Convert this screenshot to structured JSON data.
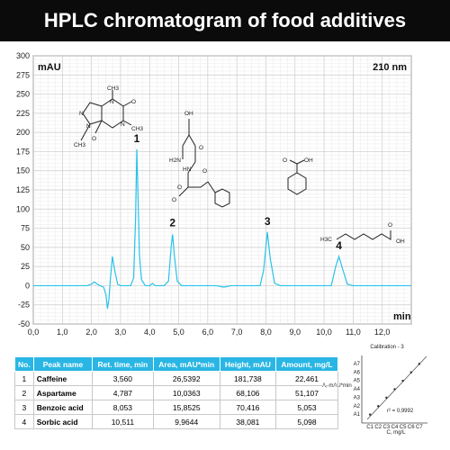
{
  "title": "HPLC chromatogram of food additives",
  "colors": {
    "trace": "#29c2ea",
    "header": "#29b6e4",
    "title_bg": "#0b0b0b"
  },
  "chart_data": [
    {
      "type": "line",
      "y_unit_label": "mAU",
      "x_unit_label": "min",
      "wavelength": "210 nm",
      "xlim": [
        0,
        13
      ],
      "ylim": [
        -50,
        300
      ],
      "x_ticks": [
        "0,0",
        "1,0",
        "2,0",
        "3,0",
        "4,0",
        "5,0",
        "6,0",
        "7,0",
        "8,0",
        "9,0",
        "10,0",
        "11,0",
        "12,0"
      ],
      "y_ticks": [
        "300",
        "275",
        "250",
        "225",
        "200",
        "175",
        "150",
        "125",
        "100",
        "75",
        "50",
        "25",
        "0",
        "-25",
        "-50"
      ],
      "grid": true,
      "series": [
        {
          "points": [
            [
              0,
              0
            ],
            [
              1.85,
              0
            ],
            [
              2.0,
              2
            ],
            [
              2.1,
              5
            ],
            [
              2.2,
              2
            ],
            [
              2.3,
              0
            ],
            [
              2.42,
              -2
            ],
            [
              2.5,
              -12
            ],
            [
              2.55,
              -30
            ],
            [
              2.6,
              -18
            ],
            [
              2.65,
              8
            ],
            [
              2.72,
              38
            ],
            [
              2.8,
              20
            ],
            [
              2.9,
              2
            ],
            [
              3.0,
              0
            ],
            [
              3.2,
              0
            ],
            [
              3.35,
              0
            ],
            [
              3.45,
              10
            ],
            [
              3.52,
              90
            ],
            [
              3.56,
              178
            ],
            [
              3.6,
              120
            ],
            [
              3.65,
              40
            ],
            [
              3.72,
              8
            ],
            [
              3.85,
              0
            ],
            [
              4.0,
              0
            ],
            [
              4.1,
              3
            ],
            [
              4.2,
              0
            ],
            [
              4.5,
              0
            ],
            [
              4.65,
              6
            ],
            [
              4.74,
              50
            ],
            [
              4.79,
              67
            ],
            [
              4.85,
              40
            ],
            [
              4.95,
              6
            ],
            [
              5.1,
              0
            ],
            [
              6.3,
              0
            ],
            [
              6.55,
              -2
            ],
            [
              6.8,
              0
            ],
            [
              7.8,
              0
            ],
            [
              7.92,
              20
            ],
            [
              8.05,
              70
            ],
            [
              8.15,
              35
            ],
            [
              8.3,
              3
            ],
            [
              8.5,
              0
            ],
            [
              10.25,
              0
            ],
            [
              10.4,
              25
            ],
            [
              10.51,
              38
            ],
            [
              10.62,
              24
            ],
            [
              10.8,
              2
            ],
            [
              11.0,
              0
            ],
            [
              13,
              0
            ]
          ]
        }
      ],
      "peak_labels": [
        {
          "text": "1",
          "x": 3.56,
          "y": 178
        },
        {
          "text": "2",
          "x": 4.787,
          "y": 68
        },
        {
          "text": "3",
          "x": 8.053,
          "y": 70
        },
        {
          "text": "4",
          "x": 10.511,
          "y": 38
        }
      ]
    },
    {
      "type": "scatter",
      "title": "Calibration - 3",
      "ylabel": "A, mAU*min",
      "xlabel": "C, mg/L",
      "x_ticks": [
        "C1",
        "C2",
        "C3",
        "C4",
        "C5",
        "C6",
        "C7"
      ],
      "y_ticks": [
        "A1",
        "A2",
        "A3",
        "A4",
        "A5",
        "A6",
        "A7"
      ],
      "r_squared": "r² = 0,9992",
      "points": [
        [
          1,
          1
        ],
        [
          2,
          2
        ],
        [
          3,
          3
        ],
        [
          4,
          4
        ],
        [
          5,
          5
        ],
        [
          6,
          6
        ],
        [
          7,
          7
        ]
      ]
    }
  ],
  "table": {
    "headers": [
      "No.",
      "Peak name",
      "Ret. time, min",
      "Area, mAU*min",
      "Height, mAU",
      "Amount, mg/L"
    ],
    "rows": [
      [
        "1",
        "Caffeine",
        "3,560",
        "26,5392",
        "181,738",
        "22,461"
      ],
      [
        "2",
        "Aspartame",
        "4,787",
        "10,0363",
        "68,106",
        "51,107"
      ],
      [
        "3",
        "Benzoic acid",
        "8,053",
        "15,8525",
        "70,416",
        "5,053"
      ],
      [
        "4",
        "Sorbic acid",
        "10,511",
        "9,9644",
        "38,081",
        "5,098"
      ]
    ]
  },
  "molecules": {
    "caffeine_atoms": [
      "N",
      "N",
      "N",
      "N",
      "O",
      "O",
      "CH3",
      "CH3",
      "CH3"
    ],
    "aspartame_atoms": [
      "OH",
      "O",
      "H2N",
      "HN",
      "O",
      "O",
      "O"
    ],
    "benzoic_atoms": [
      "O",
      "OH"
    ],
    "sorbic_atoms": [
      "H3C",
      "O",
      "OH"
    ]
  }
}
